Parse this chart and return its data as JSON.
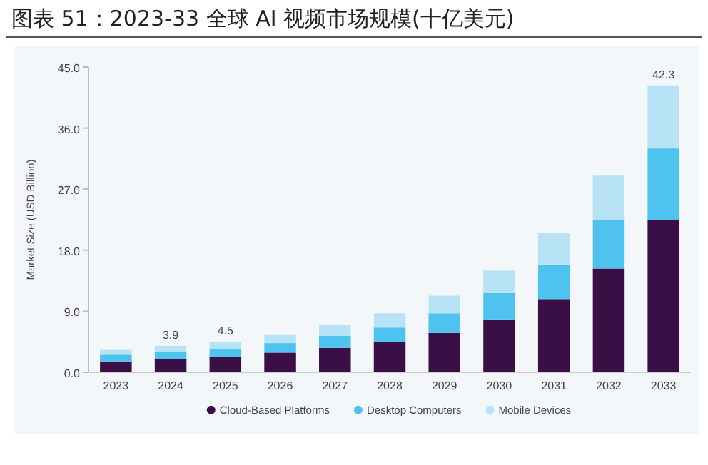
{
  "chart_data": {
    "type": "bar",
    "stacked": true,
    "title": "图表 51：2023-33 全球 AI 视频市场规模(十亿美元)",
    "ylabel": "Market Size (USD Billion)",
    "categories": [
      "2023",
      "2024",
      "2025",
      "2026",
      "2027",
      "2028",
      "2029",
      "2030",
      "2031",
      "2032",
      "2033"
    ],
    "series": [
      {
        "name": "Cloud-Based Platforms",
        "color": "#3a0f45",
        "values": [
          1.6,
          1.9,
          2.3,
          2.9,
          3.6,
          4.5,
          5.8,
          7.8,
          10.8,
          15.3,
          22.5
        ]
      },
      {
        "name": "Desktop Computers",
        "color": "#4fc3ef",
        "values": [
          1.0,
          1.1,
          1.1,
          1.4,
          1.8,
          2.1,
          2.9,
          3.9,
          5.1,
          7.2,
          10.5
        ]
      },
      {
        "name": "Mobile Devices",
        "color": "#b8e3f7",
        "values": [
          0.7,
          0.9,
          1.1,
          1.2,
          1.6,
          2.1,
          2.6,
          3.3,
          4.6,
          6.5,
          9.3
        ]
      }
    ],
    "totals": [
      null,
      "3.9",
      "4.5",
      null,
      null,
      null,
      null,
      null,
      null,
      null,
      "42.3"
    ],
    "ylim": [
      0,
      45
    ],
    "yticks": [
      {
        "value": 0,
        "label": "0.0"
      },
      {
        "value": 9,
        "label": "9.0"
      },
      {
        "value": 18,
        "label": "18.0"
      },
      {
        "value": 27,
        "label": "27.0"
      },
      {
        "value": 36,
        "label": "36.0"
      },
      {
        "value": 45,
        "label": "45.0"
      }
    ],
    "legend": "bottom",
    "grid": false
  }
}
